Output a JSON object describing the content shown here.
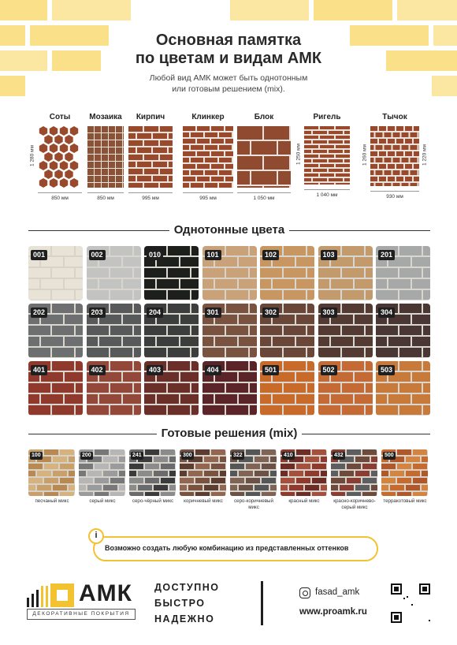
{
  "header": {
    "title_line1": "Основная памятка",
    "title_line2": "по цветам и видам АМК",
    "subtitle_line1": "Любой вид АМК может быть однотонным",
    "subtitle_line2": "или готовым решением (mix)."
  },
  "types": [
    {
      "name": "Соты",
      "width": "850 мм",
      "height": "1 280 мм",
      "pattern": "hex",
      "color": "#9a4a2c"
    },
    {
      "name": "Мозаика",
      "width": "850 мм",
      "height": "",
      "pattern": "mosaic",
      "color": "#8a5236"
    },
    {
      "name": "Кирпич",
      "width": "995 мм",
      "height": "",
      "pattern": "brick",
      "color": "#9a4a2c"
    },
    {
      "name": "Клинкер",
      "width": "995 мм",
      "height": "",
      "pattern": "clinker",
      "color": "#9a4a2c"
    },
    {
      "name": "Блок",
      "width": "1 050 мм",
      "height": "",
      "pattern": "block",
      "color": "#8f4a30"
    },
    {
      "name": "Ригель",
      "width": "1 040 мм",
      "height": "1 250 мм",
      "pattern": "rigel",
      "color": "#9a4a2c"
    },
    {
      "name": "Тычок",
      "width": "930 мм",
      "height": "1 260 мм",
      "height2": "1 220 мм",
      "pattern": "tychok",
      "color": "#9a4a2c"
    }
  ],
  "solid_section": {
    "title": "Однотонные цвета"
  },
  "solid_colors": [
    {
      "code": "001",
      "color": "#e9e2d6"
    },
    {
      "code": "002",
      "color": "#c3c3c1"
    },
    {
      "code": "010",
      "color": "#1d1f1d"
    },
    {
      "code": "101",
      "color": "#c9a27a"
    },
    {
      "code": "102",
      "color": "#c89660"
    },
    {
      "code": "103",
      "color": "#c39a6c"
    },
    {
      "code": "201",
      "color": "#a7a8a8"
    },
    {
      "code": "202",
      "color": "#6e6f70"
    },
    {
      "code": "203",
      "color": "#58595a"
    },
    {
      "code": "204",
      "color": "#3c3e3e"
    },
    {
      "code": "301",
      "color": "#7a5240"
    },
    {
      "code": "302",
      "color": "#6a4638"
    },
    {
      "code": "303",
      "color": "#533a33"
    },
    {
      "code": "304",
      "color": "#4a3633"
    },
    {
      "code": "401",
      "color": "#8f3a2c"
    },
    {
      "code": "402",
      "color": "#94483a"
    },
    {
      "code": "403",
      "color": "#6b2f2a"
    },
    {
      "code": "404",
      "color": "#5a2428"
    },
    {
      "code": "501",
      "color": "#c76a2a"
    },
    {
      "code": "502",
      "color": "#c46a35"
    },
    {
      "code": "503",
      "color": "#c87a3a"
    }
  ],
  "mix_section": {
    "title": "Готовые решения (mix)"
  },
  "mixes": [
    {
      "code": "100",
      "label_line1": "песчаный микс",
      "label_line2": "",
      "colors": [
        "#c9a06a",
        "#b88950",
        "#d6b27e"
      ]
    },
    {
      "code": "200",
      "label_line1": "серый микс",
      "label_line2": "",
      "colors": [
        "#9a9b9c",
        "#777879",
        "#b6b6b6"
      ]
    },
    {
      "code": "241",
      "label_line1": "серо-чёрный микс",
      "label_line2": "",
      "colors": [
        "#6a6b6c",
        "#3a3b3c",
        "#8a8b8b"
      ]
    },
    {
      "code": "300",
      "label_line1": "коричневый микс",
      "label_line2": "",
      "colors": [
        "#7a5240",
        "#5e3d31",
        "#936650"
      ]
    },
    {
      "code": "322",
      "label_line1": "серо-коричневый",
      "label_line2": "микс",
      "colors": [
        "#6a5247",
        "#555657",
        "#7f6455"
      ]
    },
    {
      "code": "410",
      "label_line1": "красный микс",
      "label_line2": "",
      "colors": [
        "#8f3a2c",
        "#6e2c26",
        "#a5503c"
      ]
    },
    {
      "code": "432",
      "label_line1": "красно-коричнево-",
      "label_line2": "серый микс",
      "colors": [
        "#8a3e33",
        "#5d5e5f",
        "#6e4a3c"
      ]
    },
    {
      "code": "500",
      "label_line1": "терракотовый микс",
      "label_line2": "",
      "colors": [
        "#c66a2d",
        "#b0582a",
        "#d58440"
      ]
    }
  ],
  "note": {
    "icon": "info-icon",
    "text": "Возможно создать любую комбинацию из представленных оттенков"
  },
  "footer": {
    "logo_text": "АМК",
    "logo_sub": "ДЕКОРАТИВНЫЕ ПОКРЫТИЯ",
    "slogan": [
      "ДОСТУПНО",
      "БЫСТРО",
      "НАДЕЖНО"
    ],
    "instagram_icon": "instagram-icon",
    "instagram": "fasad_amk",
    "site": "www.proamk.ru",
    "qr_icon": "qr-code-icon"
  }
}
